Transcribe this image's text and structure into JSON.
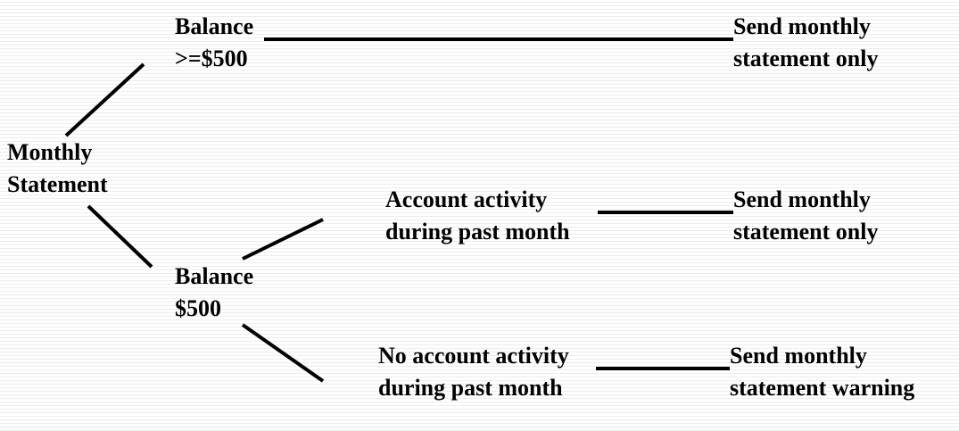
{
  "diagram": {
    "type": "decision-tree",
    "line_color": "#000000",
    "nodes": {
      "root": {
        "line1": "Monthly",
        "line2": "Statement"
      },
      "balance_high": {
        "line1": "Balance",
        "line2": ">=$500"
      },
      "balance_low": {
        "line1": "Balance",
        "line2": "$500"
      },
      "activity": {
        "line1": "Account activity",
        "line2": "during past month"
      },
      "no_activity": {
        "line1": "No account activity",
        "line2": "during past month"
      },
      "outcome_1": {
        "line1": "Send monthly",
        "line2": "statement only"
      },
      "outcome_2": {
        "line1": "Send monthly",
        "line2": "statement only"
      },
      "outcome_3": {
        "line1": "Send monthly",
        "line2": "statement warning"
      }
    }
  }
}
